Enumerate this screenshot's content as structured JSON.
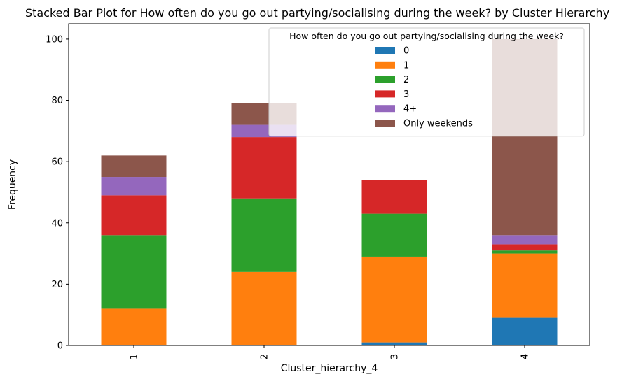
{
  "chart_data": {
    "type": "bar",
    "stacked": true,
    "title": "Stacked Bar Plot for How often do you go out partying/socialising during the week?  by Cluster Hierarchy",
    "xlabel": "Cluster_hierarchy_4",
    "ylabel": "Frequency",
    "categories": [
      "1",
      "2",
      "3",
      "4"
    ],
    "ylim": [
      0,
      105
    ],
    "yticks": [
      0,
      20,
      40,
      60,
      80,
      100
    ],
    "legend": {
      "title": "How often do you go out partying/socialising during the week?",
      "placement": "top-right"
    },
    "series": [
      {
        "name": "0",
        "color": "#1f77b4",
        "values": [
          0,
          0,
          1,
          9
        ]
      },
      {
        "name": "1",
        "color": "#ff7f0e",
        "values": [
          12,
          24,
          28,
          21
        ]
      },
      {
        "name": "2",
        "color": "#2ca02c",
        "values": [
          24,
          24,
          14,
          1
        ]
      },
      {
        "name": "3",
        "color": "#d62728",
        "values": [
          13,
          20,
          11,
          2
        ]
      },
      {
        "name": "4+",
        "color": "#9467bd",
        "values": [
          6,
          4,
          0,
          3
        ]
      },
      {
        "name": "Only weekends",
        "color": "#8c564b",
        "values": [
          7,
          7,
          0,
          64
        ]
      }
    ]
  }
}
